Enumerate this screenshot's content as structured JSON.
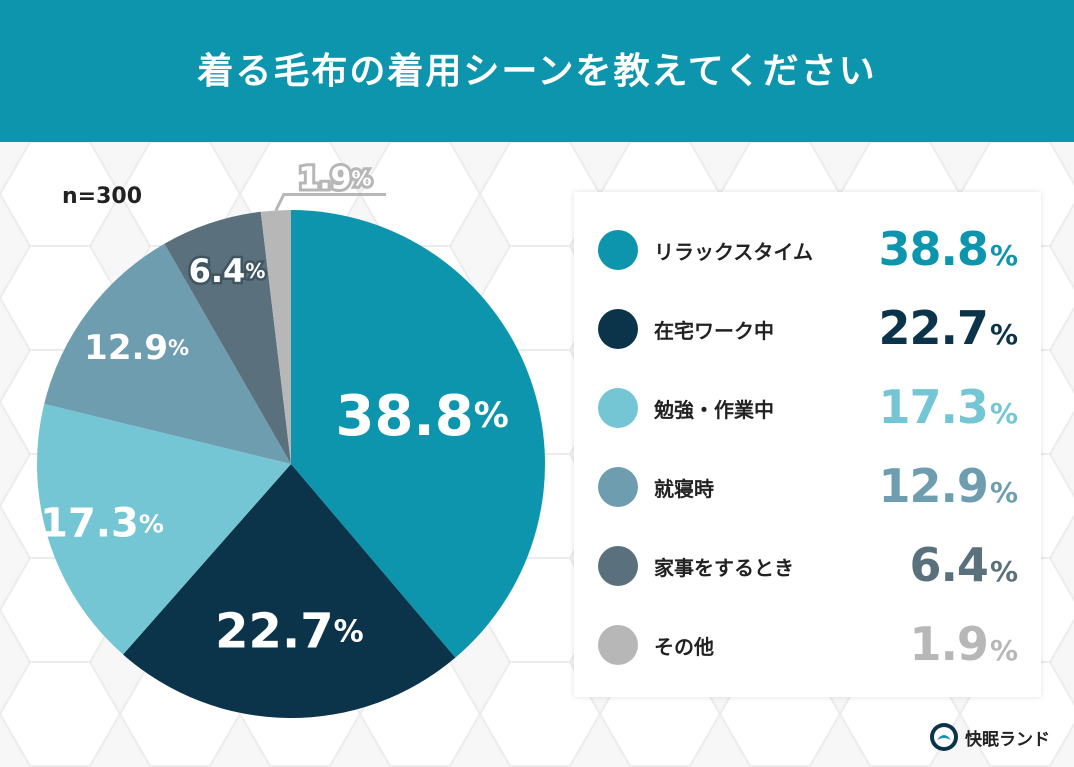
{
  "title": "着る毛布の着用シーンを教えてください",
  "sample_size": "n=300",
  "brand": "快眠ランド",
  "colors": {
    "header": "#0c95ad",
    "relax": "#0c95ad",
    "home_work": "#0b3349",
    "study": "#75c6d5",
    "sleep": "#6e9db0",
    "chores": "#5a717d",
    "other": "#b7b7b7"
  },
  "chart_data": {
    "type": "pie",
    "title": "着る毛布の着用シーンを教えてください",
    "unit": "%",
    "slices": [
      {
        "label": "リラックスタイム",
        "value": 38.8,
        "display": "38.8",
        "color": "#0c95ad"
      },
      {
        "label": "在宅ワーク中",
        "value": 22.7,
        "display": "22.7",
        "color": "#0b3349"
      },
      {
        "label": "勉強・作業中",
        "value": 17.3,
        "display": "17.3",
        "color": "#75c6d5"
      },
      {
        "label": "就寝時",
        "value": 12.9,
        "display": "12.9",
        "color": "#6e9db0"
      },
      {
        "label": "家事をするとき",
        "value": 6.4,
        "display": "6.4",
        "color": "#5a717d"
      },
      {
        "label": "その他",
        "value": 1.9,
        "display": "1.9",
        "color": "#b7b7b7"
      }
    ]
  }
}
